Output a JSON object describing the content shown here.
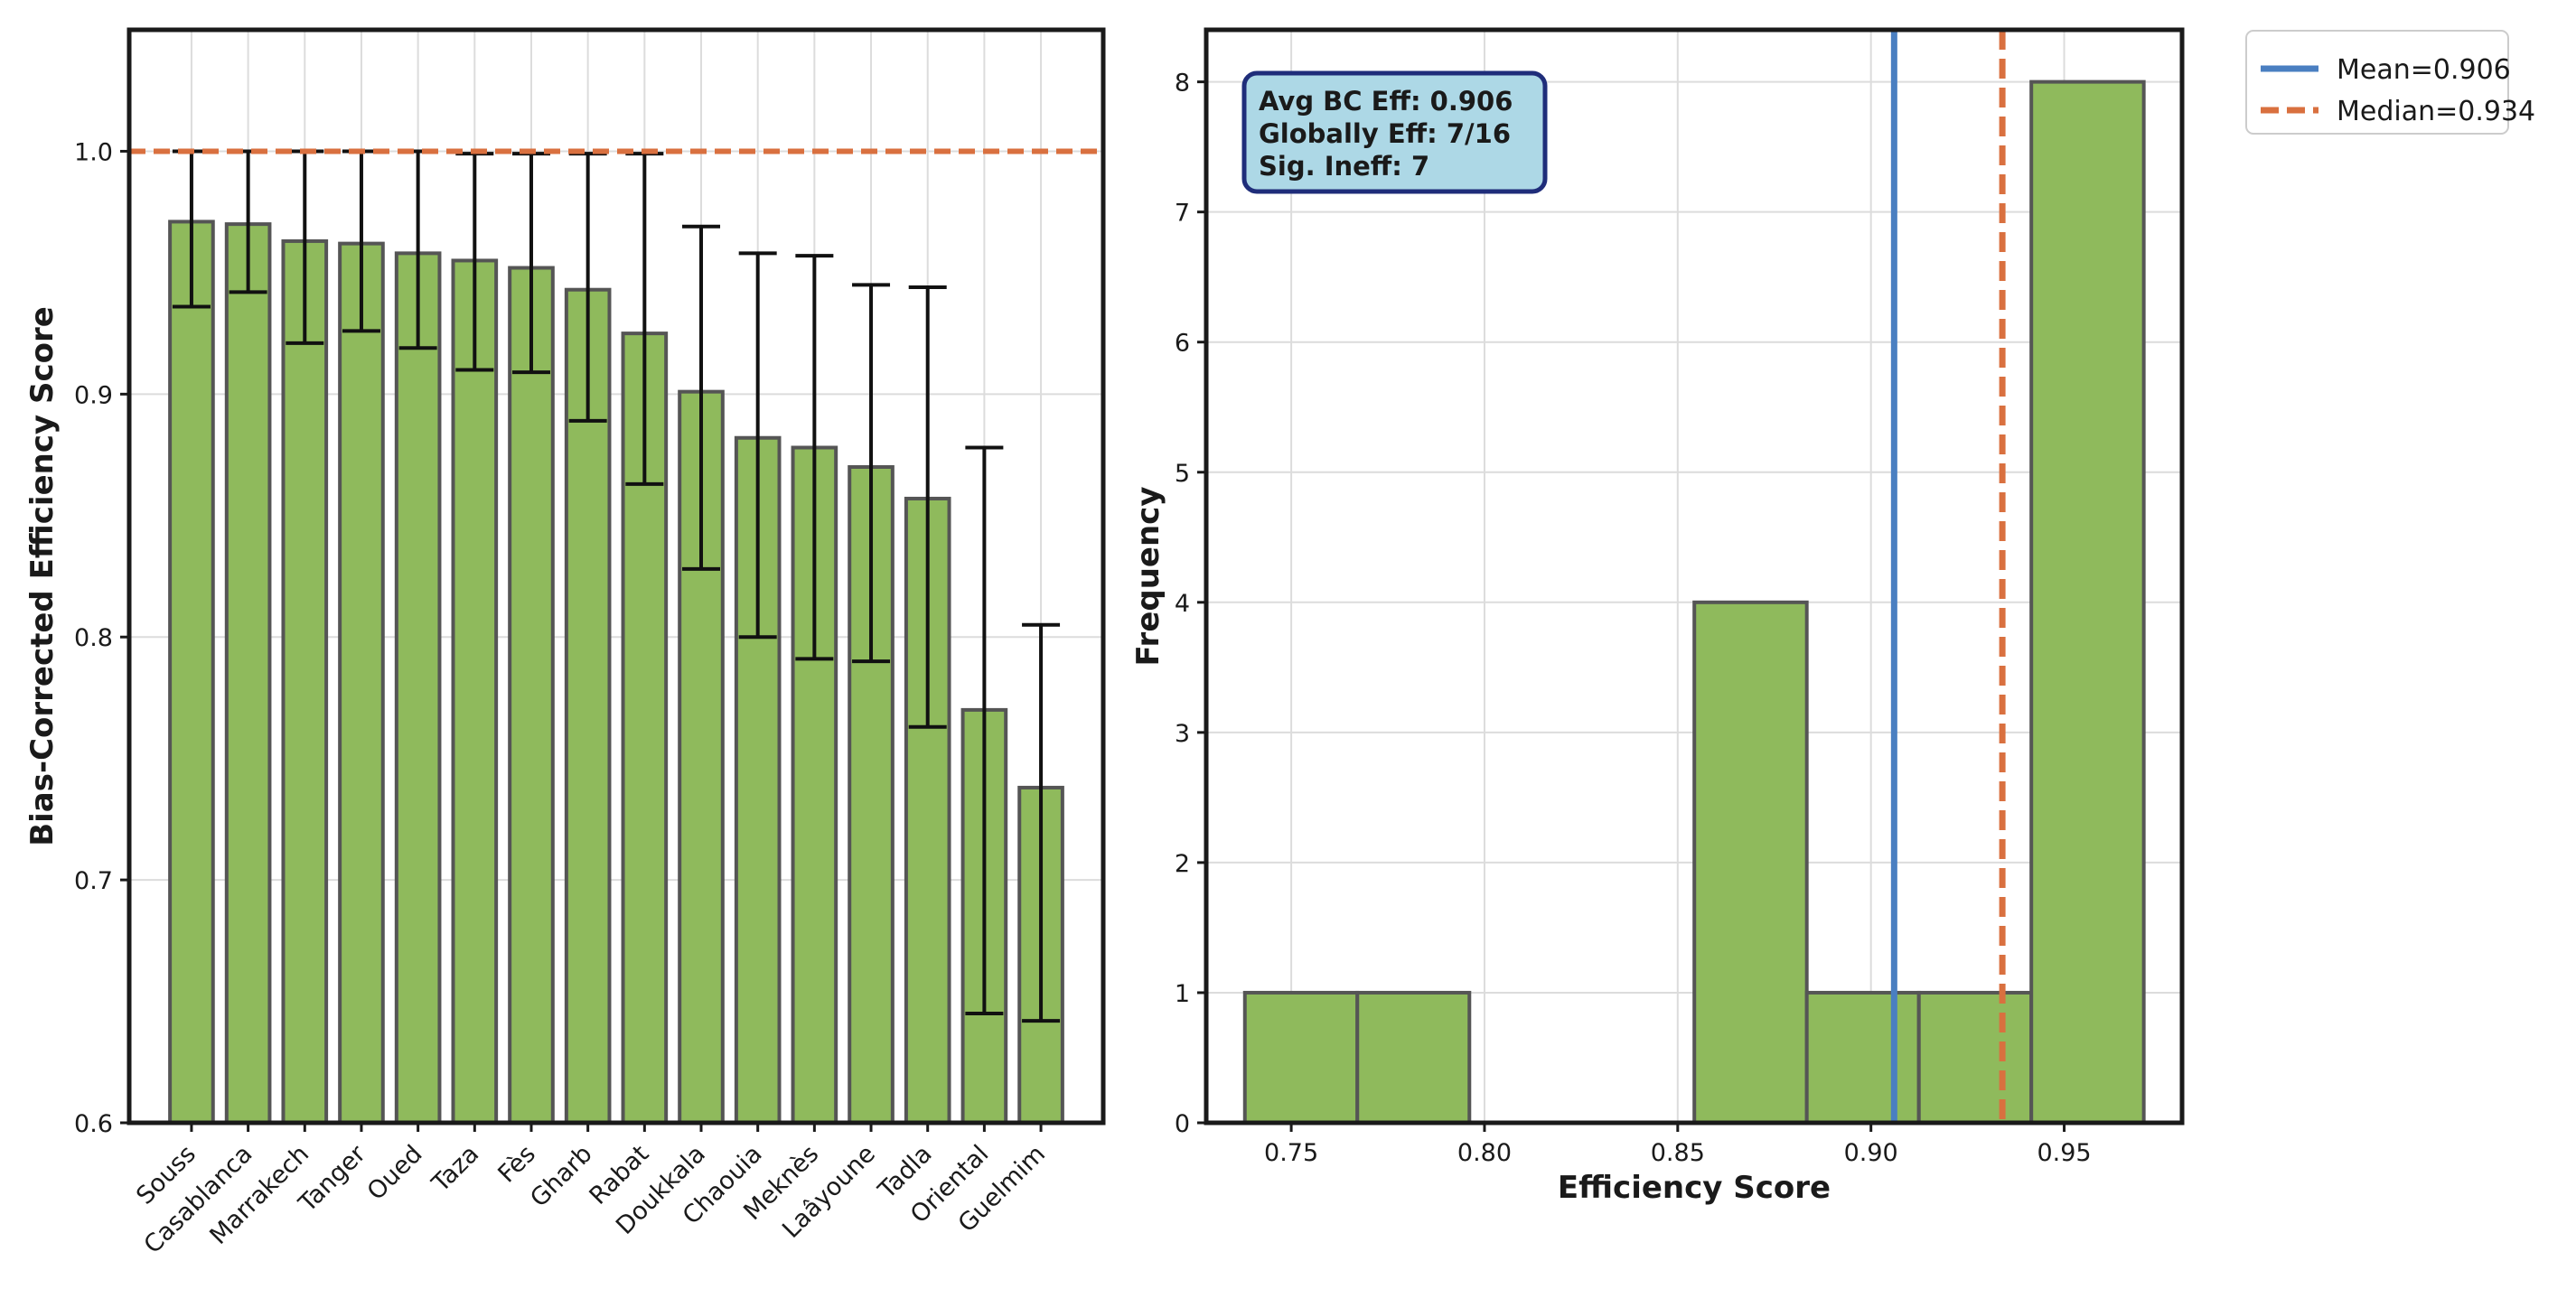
{
  "chart_data": [
    {
      "type": "bar",
      "title": "",
      "xlabel": "",
      "ylabel": "Bias-Corrected Efficiency Score",
      "ylim": [
        0.6,
        1.05
      ],
      "yticks": [
        0.6,
        0.7,
        0.8,
        0.9,
        1.0
      ],
      "ytick_labels": [
        "0.6",
        "0.7",
        "0.8",
        "0.9",
        "1.0"
      ],
      "grid": true,
      "categories": [
        "Souss",
        "Casablanca",
        "Marrakech",
        "Tanger",
        "Oued",
        "Taza",
        "Fès",
        "Gharb",
        "Rabat",
        "Doukkala",
        "Chaouia",
        "Meknès",
        "Laâyoune",
        "Tadla",
        "Oriental",
        "Guelmim"
      ],
      "values": [
        0.971,
        0.97,
        0.963,
        0.962,
        0.958,
        0.955,
        0.952,
        0.943,
        0.925,
        0.901,
        0.882,
        0.878,
        0.87,
        0.857,
        0.77,
        0.738
      ],
      "ci_lower": [
        0.936,
        0.942,
        0.921,
        0.926,
        0.919,
        0.91,
        0.909,
        0.889,
        0.863,
        0.828,
        0.8,
        0.791,
        0.79,
        0.763,
        0.645,
        0.642
      ],
      "ci_upper": [
        1.0,
        1.0,
        1.0,
        1.0,
        1.0,
        0.999,
        0.999,
        0.999,
        0.999,
        0.969,
        0.958,
        0.957,
        0.945,
        0.944,
        0.878,
        0.805
      ],
      "reference_line": 1.0,
      "bar_color": "#8fba5c",
      "reference_color": "#d9703f"
    },
    {
      "type": "histogram",
      "title": "",
      "xlabel": "Efficiency Score",
      "ylabel": "Frequency",
      "xlim": [
        0.728,
        0.9805
      ],
      "ylim": [
        0,
        8.4
      ],
      "xticks": [
        0.75,
        0.8,
        0.85,
        0.9,
        0.95
      ],
      "xtick_labels": [
        "0.75",
        "0.80",
        "0.85",
        "0.90",
        "0.95"
      ],
      "yticks": [
        0,
        1,
        2,
        3,
        4,
        5,
        6,
        7,
        8
      ],
      "ytick_labels": [
        "0",
        "1",
        "2",
        "3",
        "4",
        "5",
        "6",
        "7",
        "8"
      ],
      "grid": true,
      "bins": [
        0.738,
        0.7671,
        0.7961,
        0.8252,
        0.8543,
        0.8834,
        0.9124,
        0.9415,
        0.9706
      ],
      "counts": [
        1,
        1,
        0,
        0,
        4,
        1,
        1,
        8
      ],
      "bar_color": "#8fba5c",
      "mean": 0.906,
      "median": 0.934,
      "mean_color": "#4a7fc1",
      "median_color": "#d9703f",
      "legend": {
        "position": "outside top-right",
        "entries": [
          "Mean=0.906",
          "Median=0.934"
        ]
      },
      "annotation": {
        "lines": [
          "Avg BC Eff: 0.906",
          "Globally Eff: 7/16",
          "Sig. Ineff: 7"
        ],
        "background": "#add8e6",
        "border": "#1f2d7a"
      }
    }
  ]
}
